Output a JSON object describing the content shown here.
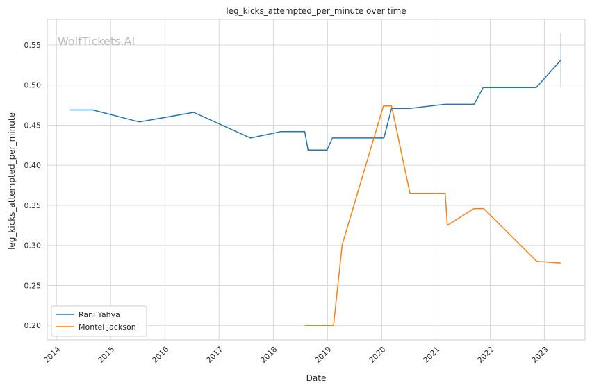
{
  "chart_data": {
    "type": "line",
    "title": "leg_kicks_attempted_per_minute over time",
    "xlabel": "Date",
    "ylabel": "leg_kicks_attempted_per_minute",
    "watermark": "WolfTickets.AI",
    "xlim": [
      2013.83,
      2023.75
    ],
    "ylim": [
      0.182,
      0.582
    ],
    "x_ticks": [
      2014,
      2015,
      2016,
      2017,
      2018,
      2019,
      2020,
      2021,
      2022,
      2023
    ],
    "y_ticks": [
      0.2,
      0.25,
      0.3,
      0.35,
      0.4,
      0.45,
      0.5,
      0.55
    ],
    "y_tick_labels": [
      "0.20",
      "0.25",
      "0.30",
      "0.35",
      "0.40",
      "0.45",
      "0.50",
      "0.55"
    ],
    "grid": true,
    "legend_position": "bottom-left",
    "series": [
      {
        "name": "Rani Yahya",
        "color": "#1f77b4",
        "points": [
          {
            "x": 2014.25,
            "y": 0.469
          },
          {
            "x": 2014.67,
            "y": 0.469
          },
          {
            "x": 2015.53,
            "y": 0.454
          },
          {
            "x": 2016.53,
            "y": 0.466
          },
          {
            "x": 2017.58,
            "y": 0.434
          },
          {
            "x": 2018.14,
            "y": 0.442
          },
          {
            "x": 2018.58,
            "y": 0.442
          },
          {
            "x": 2018.64,
            "y": 0.419
          },
          {
            "x": 2018.99,
            "y": 0.419
          },
          {
            "x": 2019.09,
            "y": 0.434
          },
          {
            "x": 2020.04,
            "y": 0.434
          },
          {
            "x": 2020.18,
            "y": 0.471
          },
          {
            "x": 2020.52,
            "y": 0.471
          },
          {
            "x": 2021.16,
            "y": 0.476
          },
          {
            "x": 2021.7,
            "y": 0.476
          },
          {
            "x": 2021.87,
            "y": 0.497
          },
          {
            "x": 2022.85,
            "y": 0.497
          },
          {
            "x": 2023.3,
            "y": 0.531
          }
        ],
        "error_bar": {
          "x": 2023.3,
          "low": 0.497,
          "high": 0.565
        }
      },
      {
        "name": "Montel Jackson",
        "color": "#ff7f0e",
        "points": [
          {
            "x": 2018.58,
            "y": 0.2
          },
          {
            "x": 2019.11,
            "y": 0.2
          },
          {
            "x": 2019.27,
            "y": 0.301
          },
          {
            "x": 2020.03,
            "y": 0.474
          },
          {
            "x": 2020.18,
            "y": 0.474
          },
          {
            "x": 2020.52,
            "y": 0.365
          },
          {
            "x": 2021.17,
            "y": 0.365
          },
          {
            "x": 2021.21,
            "y": 0.325
          },
          {
            "x": 2021.7,
            "y": 0.346
          },
          {
            "x": 2021.88,
            "y": 0.346
          },
          {
            "x": 2022.86,
            "y": 0.28
          },
          {
            "x": 2023.3,
            "y": 0.278
          }
        ]
      }
    ]
  }
}
